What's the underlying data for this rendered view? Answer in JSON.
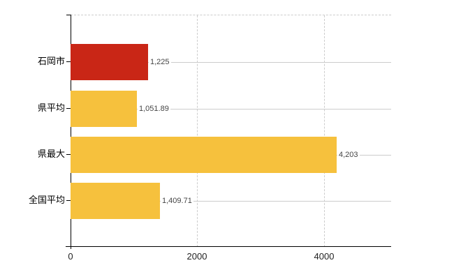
{
  "chart_data": {
    "type": "bar",
    "orientation": "horizontal",
    "title": "",
    "xlabel": "",
    "ylabel": "",
    "categories": [
      "石岡市",
      "県平均",
      "県最大",
      "全国平均"
    ],
    "values": [
      1225,
      1051.89,
      4203,
      1409.71
    ],
    "value_labels": [
      "1,225",
      "1,051.89",
      "4,203",
      "1,409.71"
    ],
    "bar_colors": [
      "#c92616",
      "#f6c13d",
      "#f6c13d",
      "#f6c13d"
    ],
    "xlim": [
      0,
      5058
    ],
    "x_ticks": [
      2000,
      4000
    ],
    "x_tick_labels": [
      {
        "value": 0,
        "label": "0"
      },
      {
        "value": 2000,
        "label": "2000"
      },
      {
        "value": 4000,
        "label": "4000"
      }
    ],
    "grid": true,
    "legend": false,
    "colors": {
      "accent_red": "#c92616",
      "accent_gold": "#f6c13d",
      "axis": "#000000",
      "gridline": "#cccccc",
      "value_text": "#444444",
      "category_text": "#000000",
      "background": "#ffffff"
    }
  }
}
